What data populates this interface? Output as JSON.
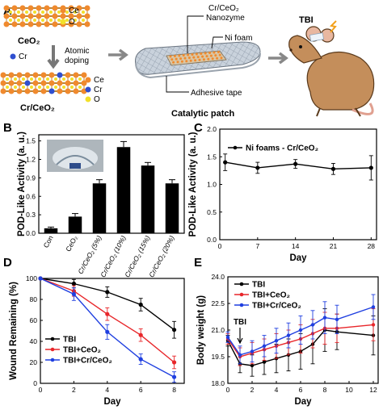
{
  "panel_labels": {
    "a": "A",
    "b": "B",
    "c": "C",
    "d": "D",
    "e": "E"
  },
  "schematic": {
    "ceo2_label": "CeO₂",
    "crceo2_label": "Cr/CeO₂",
    "legend_top": {
      "ce": "Ce",
      "o": "O"
    },
    "legend_bottom": {
      "ce": "Ce",
      "cr": "Cr",
      "o": "O"
    },
    "dopant_label": "Cr",
    "doping_label_1": "Atomic",
    "doping_label_2": "doping",
    "nanozyme_label_1": "Cr/CeO₂",
    "nanozyme_label_2": "Nanozyme",
    "nifoam_label": "Ni foam",
    "tape_label": "Adhesive tape",
    "patch_label": "Catalytic patch",
    "tbi_label": "TBI",
    "colors": {
      "ce": "#f08a2e",
      "o": "#f2e02a",
      "cr": "#2f4fd0",
      "lattice": "#b8863b"
    }
  },
  "chart_data": [
    {
      "panel": "B",
      "type": "bar",
      "ylabel": "POD-Like Activity (a. u.)",
      "xlabel": "",
      "ylim": [
        0,
        1.6
      ],
      "yticks": [
        "0.0",
        "0.3",
        "0.6",
        "0.9",
        "1.2",
        "1.5"
      ],
      "categories": [
        "Con",
        "CeO₂",
        "Cr/CeO₂ (5%)",
        "Cr/CeO₂ (10%)",
        "Cr/CeO₂ (15%)",
        "Cr/CeO₂ (20%)"
      ],
      "values": [
        0.08,
        0.27,
        0.81,
        1.4,
        1.1,
        0.81
      ],
      "errors": [
        0.02,
        0.05,
        0.06,
        0.09,
        0.05,
        0.06
      ],
      "color": "#000000"
    },
    {
      "panel": "C",
      "type": "line",
      "ylabel": "POD-Like Activity (a. u.)",
      "xlabel": "Day",
      "ylim": [
        0,
        2.0
      ],
      "xlim": [
        0,
        29
      ],
      "yticks": [
        "0.0",
        "0.5",
        "1.0",
        "1.5",
        "2.0"
      ],
      "xticks": [
        "0",
        "7",
        "14",
        "21",
        "28"
      ],
      "series": [
        {
          "name": "Ni foams - Cr/CeO₂",
          "color": "#000000",
          "x": [
            1,
            7,
            14,
            21,
            28
          ],
          "values": [
            1.4,
            1.3,
            1.37,
            1.28,
            1.3
          ],
          "errors": [
            0.15,
            0.1,
            0.08,
            0.1,
            0.22
          ]
        }
      ],
      "legend": "top"
    },
    {
      "panel": "D",
      "type": "line",
      "ylabel": "Wound Remaining (%)",
      "xlabel": "Day",
      "ylim": [
        0,
        100
      ],
      "xlim": [
        0,
        8.6
      ],
      "yticks": [
        "0",
        "20",
        "40",
        "60",
        "80",
        "100"
      ],
      "xticks": [
        "0",
        "2",
        "4",
        "6",
        "8"
      ],
      "series": [
        {
          "name": "TBI",
          "color": "#000000",
          "x": [
            0,
            2,
            4,
            6,
            8
          ],
          "values": [
            100,
            95,
            87,
            75,
            51
          ],
          "errors": [
            0,
            4,
            5,
            6,
            8
          ]
        },
        {
          "name": "TBI+CeO₂",
          "color": "#e8262a",
          "x": [
            0,
            2,
            4,
            6,
            8
          ],
          "values": [
            100,
            88,
            66,
            46,
            20
          ],
          "errors": [
            0,
            5,
            6,
            6,
            6
          ]
        },
        {
          "name": "TBI+Cr/CeO₂",
          "color": "#1f3fe0",
          "x": [
            0,
            2,
            4,
            6,
            8
          ],
          "values": [
            100,
            85,
            49,
            23,
            6
          ],
          "errors": [
            0,
            6,
            7,
            5,
            5
          ]
        }
      ],
      "legend": "bottom-left"
    },
    {
      "panel": "E",
      "type": "line",
      "ylabel": "Body weight (g)",
      "xlabel": "Day",
      "ylim": [
        18.0,
        24.0
      ],
      "xlim": [
        0,
        12.4
      ],
      "yticks": [
        "18.0",
        "19.5",
        "21.0",
        "22.5",
        "24.0"
      ],
      "xticks": [
        "0",
        "2",
        "4",
        "6",
        "8",
        "10",
        "12"
      ],
      "annotation": "TBI",
      "annotation_x": 1,
      "series": [
        {
          "name": "TBI",
          "color": "#000000",
          "x": [
            0,
            1,
            2,
            3,
            4,
            5,
            6,
            7,
            8,
            9,
            12
          ],
          "values": [
            20.4,
            19.1,
            19.0,
            19.2,
            19.4,
            19.6,
            19.8,
            20.2,
            21.0,
            20.9,
            20.7
          ],
          "errors": [
            0.3,
            0.5,
            0.6,
            0.7,
            0.8,
            0.9,
            1.0,
            1.1,
            1.2,
            1.0,
            1.1
          ]
        },
        {
          "name": "TBI+CeO₂",
          "color": "#e8262a",
          "x": [
            0,
            1,
            2,
            3,
            4,
            5,
            6,
            7,
            8,
            9,
            12
          ],
          "values": [
            20.5,
            19.5,
            19.7,
            19.9,
            20.1,
            20.3,
            20.5,
            20.8,
            21.1,
            21.1,
            21.3
          ],
          "errors": [
            0.3,
            0.5,
            0.6,
            0.6,
            0.7,
            0.7,
            0.8,
            0.8,
            0.9,
            0.8,
            0.9
          ]
        },
        {
          "name": "TBI+Cr/CeO₂",
          "color": "#1f3fe0",
          "x": [
            0,
            1,
            2,
            3,
            4,
            5,
            6,
            7,
            8,
            9,
            12
          ],
          "values": [
            20.6,
            19.6,
            19.8,
            20.1,
            20.4,
            20.7,
            21.0,
            21.3,
            21.7,
            21.6,
            22.3
          ],
          "errors": [
            0.3,
            0.5,
            0.6,
            0.6,
            0.7,
            0.7,
            0.8,
            0.8,
            0.9,
            0.8,
            0.7
          ]
        }
      ],
      "legend": "top-left"
    }
  ]
}
